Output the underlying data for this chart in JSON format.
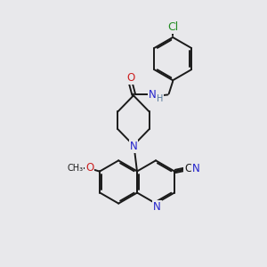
{
  "bg_color": "#e8e8eb",
  "bond_color": "#1a1a1a",
  "bond_width": 1.4,
  "atom_colors": {
    "C": "#1a1a1a",
    "N": "#2222cc",
    "O": "#cc2222",
    "Cl": "#228B22",
    "H": "#557799"
  },
  "font_size": 8.5
}
